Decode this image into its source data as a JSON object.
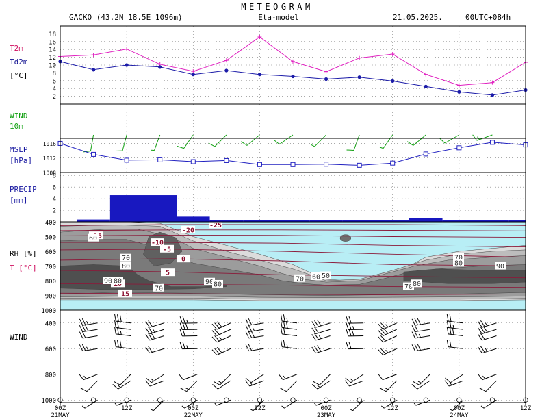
{
  "header": {
    "title": "METEOGRAM",
    "station": "GACKO (43.2N 18.5E  1096m)",
    "model": "Eta-model",
    "date": "21.05.2025.",
    "run": "00UTC+084h"
  },
  "labels": {
    "t2m": "T2m",
    "td2m": "Td2m",
    "temp_unit": "[°C]",
    "wind_a": "WIND",
    "wind_b": "10m",
    "mslp_a": "MSLP",
    "mslp_b": "[hPa]",
    "precip_a": "PRECIP",
    "precip_b": "[mm]",
    "rh": "RH [%]",
    "t": "T [°C]",
    "upper_wind": "WIND"
  },
  "colors": {
    "t2m": "#e020c0",
    "td2m": "#1c1ca8",
    "wind": "#10a010",
    "mslp": "#2020c0",
    "precip": "#1818c0",
    "label_red": "#d01060",
    "label_blue": "#101090",
    "isotherm": "#8b1a3a",
    "cloud_sky": "#b8eef5"
  },
  "time_axis": {
    "ticks": [
      "00Z",
      "12Z",
      "00Z",
      "12Z",
      "00Z",
      "12Z",
      "00Z",
      "12Z"
    ],
    "day_labels": [
      "21MAY",
      "22MAY",
      "23MAY",
      "24MAY"
    ]
  },
  "chart_data": [
    {
      "type": "line",
      "name": "temperature",
      "x_hours": [
        0,
        6,
        12,
        18,
        24,
        30,
        36,
        42,
        48,
        54,
        60,
        66,
        72,
        78,
        84
      ],
      "series": [
        {
          "name": "T2m",
          "values": [
            12.2,
            12.6,
            14.1,
            10.2,
            8.4,
            11.2,
            17.2,
            10.9,
            8.3,
            11.8,
            12.8,
            7.6,
            4.8,
            5.5,
            10.7
          ]
        },
        {
          "name": "Td2m",
          "values": [
            10.9,
            8.8,
            10.0,
            9.5,
            7.6,
            8.6,
            7.6,
            7.1,
            6.4,
            6.9,
            5.9,
            4.5,
            3.1,
            2.3,
            3.6
          ]
        }
      ],
      "ylim": [
        0,
        20
      ],
      "yticks": [
        2,
        4,
        6,
        8,
        10,
        12,
        14,
        16,
        18
      ]
    },
    {
      "type": "scatter",
      "name": "wind10m",
      "x_hours": [
        6,
        12,
        18,
        24,
        30,
        36,
        42,
        48,
        54,
        60,
        66,
        72,
        78
      ],
      "direction_deg": [
        190,
        195,
        200,
        215,
        225,
        230,
        235,
        225,
        200,
        215,
        230,
        240,
        250
      ],
      "speed_kt": [
        10,
        10,
        5,
        10,
        10,
        10,
        10,
        5,
        10,
        5,
        10,
        10,
        15
      ]
    },
    {
      "type": "line",
      "name": "mslp",
      "x_hours": [
        0,
        6,
        12,
        18,
        24,
        30,
        36,
        42,
        48,
        54,
        60,
        66,
        72,
        78,
        84
      ],
      "series": [
        {
          "name": "MSLP",
          "values": [
            1016.0,
            1013.0,
            1011.4,
            1011.5,
            1011.0,
            1011.3,
            1010.2,
            1010.2,
            1010.3,
            1010.0,
            1010.6,
            1013.1,
            1014.8,
            1016.3,
            1015.6
          ]
        }
      ],
      "ylim": [
        1008,
        1017.4
      ],
      "yticks": [
        1008,
        1012,
        1016
      ]
    },
    {
      "type": "bar",
      "name": "precip",
      "intervals_h": [
        [
          3,
          9
        ],
        [
          9,
          21
        ],
        [
          21,
          27
        ],
        [
          27,
          33
        ],
        [
          33,
          39
        ],
        [
          39,
          45
        ],
        [
          45,
          51
        ],
        [
          51,
          57
        ],
        [
          57,
          63
        ],
        [
          63,
          69
        ],
        [
          69,
          75
        ],
        [
          75,
          81
        ],
        [
          81,
          84
        ]
      ],
      "values": [
        0.4,
        4.6,
        0.9,
        0.3,
        0.3,
        0.3,
        0.3,
        0.3,
        0.3,
        0.6,
        0.3,
        0.3,
        0.3
      ],
      "ylim": [
        0,
        8.5
      ],
      "yticks": [
        2,
        4,
        6,
        8
      ]
    },
    {
      "type": "heatmap",
      "name": "rh_temperature_cross_section",
      "pressure_ticks": [
        400,
        500,
        600,
        700,
        800,
        900,
        1000
      ],
      "rh_levels": [
        50,
        60,
        70,
        80,
        90
      ],
      "isotherm_labels": [
        "-25",
        "-20",
        "-15",
        "-10",
        "-5",
        "0",
        "5",
        "10",
        "15"
      ],
      "rh_labels": [
        "50",
        "60",
        "70",
        "80",
        "90"
      ]
    },
    {
      "type": "scatter",
      "name": "upper_wind",
      "pressure_levels": [
        400,
        450,
        500,
        600,
        800,
        850,
        1000
      ],
      "x_hours": [
        0,
        6,
        12,
        18,
        24,
        30,
        36,
        42,
        48,
        54,
        60,
        66,
        72,
        78,
        84
      ]
    }
  ]
}
